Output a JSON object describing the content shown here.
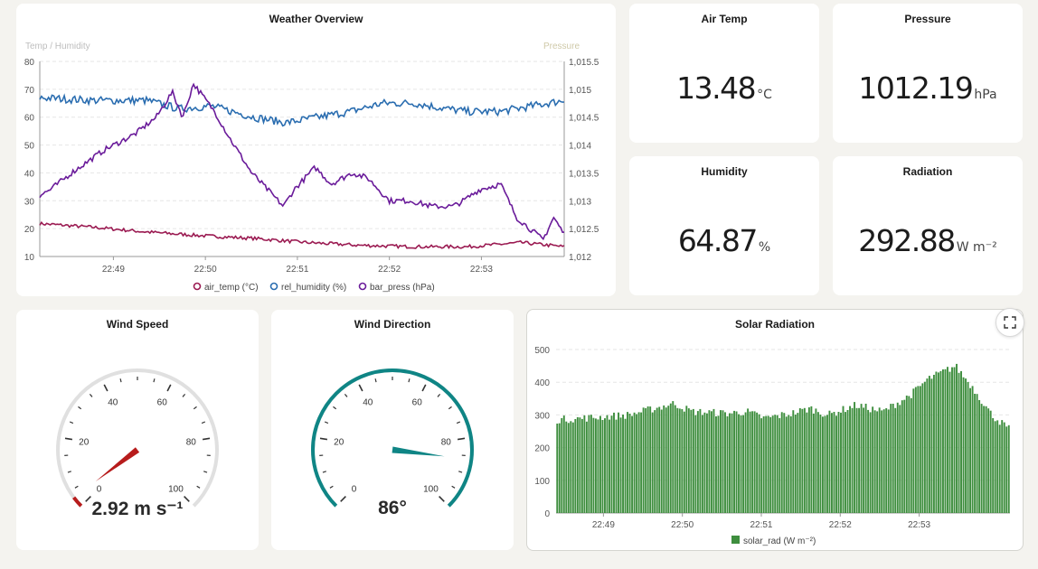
{
  "colors": {
    "air_temp": "#9b1b52",
    "rel_humidity": "#2a6db0",
    "bar_press": "#6a1b9a",
    "wind_speed_needle": "#b71c1c",
    "wind_dir_needle": "#0f8585",
    "solar_bar": "#3e8e3e"
  },
  "overview": {
    "title": "Weather Overview",
    "left_axis_label": "Temp / Humidity",
    "right_axis_label": "Pressure",
    "legend": [
      "air_temp (°C)",
      "rel_humidity (%)",
      "bar_press (hPa)"
    ]
  },
  "stats": {
    "air_temp": {
      "title": "Air Temp",
      "value": "13.48",
      "unit": "°C"
    },
    "pressure": {
      "title": "Pressure",
      "value": "1012.19",
      "unit": "hPa"
    },
    "humidity": {
      "title": "Humidity",
      "value": "64.87",
      "unit": "%"
    },
    "radiation": {
      "title": "Radiation",
      "value": "292.88",
      "unit": "W m⁻²"
    }
  },
  "wind_speed": {
    "title": "Wind Speed",
    "value": 2.92,
    "display": "2.92 m s⁻¹",
    "min": 0,
    "max": 100,
    "tick_labels": [
      "0",
      "20",
      "40",
      "60",
      "80",
      "100"
    ]
  },
  "wind_direction": {
    "title": "Wind Direction",
    "value": 86,
    "display": "86°",
    "min": 0,
    "max": 100,
    "tick_labels": [
      "0",
      "20",
      "40",
      "60",
      "80",
      "100"
    ]
  },
  "solar": {
    "title": "Solar Radiation",
    "legend": "solar_rad (W m⁻²)"
  },
  "chart_data": [
    {
      "type": "line",
      "title": "Weather Overview",
      "x_ticks": [
        "22:49",
        "22:50",
        "22:51",
        "22:52",
        "22:53"
      ],
      "y_left_label": "Temp / Humidity",
      "y_left_ticks": [
        "10",
        "20",
        "30",
        "40",
        "50",
        "60",
        "70",
        "80"
      ],
      "y_left_lim": [
        10,
        80
      ],
      "y_right_label": "Pressure",
      "y_right_ticks": [
        "1,012",
        "1,012.5",
        "1,013",
        "1,013.5",
        "1,014",
        "1,014.5",
        "1,015",
        "1,015.5"
      ],
      "y_right_lim": [
        1012,
        1015.5
      ],
      "grid": true,
      "legend_position": "bottom",
      "series": [
        {
          "name": "air_temp (°C)",
          "axis": "left",
          "x_minutes": [
            0,
            0.5,
            1,
            1.5,
            2,
            2.5,
            3,
            3.5,
            4,
            4.5,
            4.9
          ],
          "values": [
            21.8,
            20.5,
            18.8,
            17.5,
            16.5,
            15,
            14,
            13.5,
            13.5,
            15,
            13.5
          ]
        },
        {
          "name": "rel_humidity (%)",
          "axis": "left",
          "x_minutes": [
            0,
            0.5,
            1,
            1.3,
            1.6,
            2,
            2.3,
            2.6,
            2.9,
            3.2,
            3.5,
            3.8,
            4,
            4.3,
            4.6,
            4.9
          ],
          "values": [
            67,
            66,
            66,
            63,
            64,
            60,
            58,
            60,
            62,
            65,
            65,
            63,
            62,
            62,
            64,
            66
          ]
        },
        {
          "name": "bar_press (hPa)",
          "axis": "right",
          "x_minutes": [
            0,
            0.1,
            0.3,
            0.6,
            0.9,
            1.1,
            1.25,
            1.35,
            1.45,
            1.65,
            1.8,
            2,
            2.3,
            2.4,
            2.6,
            2.75,
            2.95,
            3.1,
            3.3,
            3.5,
            3.7,
            3.9,
            4,
            4.15,
            4.35,
            4.5,
            4.75,
            4.85,
            4.95
          ],
          "values": [
            1013.1,
            1013.2,
            1013.5,
            1013.9,
            1014.2,
            1014.5,
            1014.95,
            1014.5,
            1015.1,
            1014.6,
            1014.1,
            1013.5,
            1012.9,
            1013.2,
            1013.6,
            1013.3,
            1013.5,
            1013.4,
            1013,
            1013,
            1012.9,
            1012.9,
            1013,
            1013.2,
            1013.3,
            1012.7,
            1012.3,
            1012.7,
            1012.4
          ]
        }
      ]
    },
    {
      "type": "bar",
      "title": "Solar Radiation",
      "x_ticks": [
        "22:49",
        "22:50",
        "22:51",
        "22:52",
        "22:53"
      ],
      "y_ticks": [
        "0",
        "100",
        "200",
        "300",
        "400",
        "500"
      ],
      "ylim": [
        0,
        500
      ],
      "grid": true,
      "legend_position": "bottom",
      "series": [
        {
          "name": "solar_rad (W m⁻²)",
          "x_minutes": [
            0,
            0.3,
            0.8,
            1.3,
            1.5,
            1.9,
            2.1,
            2.3,
            2.6,
            2.8,
            3.0,
            3.3,
            3.6,
            3.9,
            4.1,
            4.4,
            4.6,
            4.8,
            5.0
          ],
          "values": [
            285,
            290,
            300,
            335,
            310,
            305,
            310,
            290,
            305,
            320,
            300,
            330,
            310,
            360,
            410,
            450,
            380,
            300,
            255
          ]
        }
      ]
    }
  ]
}
